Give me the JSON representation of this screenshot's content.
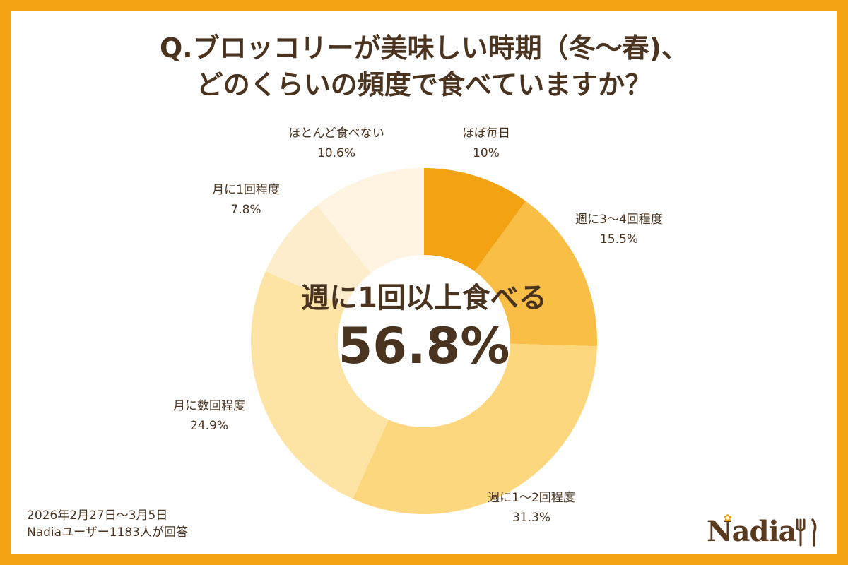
{
  "title": {
    "line1": "Q.ブロッコリーが美味しい時期（冬〜春)、",
    "line2": "どのくらいの頻度で食べていますか？"
  },
  "center": {
    "caption": "週に1回以上食べる",
    "value": "56.8%"
  },
  "footnote": {
    "period": "2026年2月27日〜3月5日",
    "respondents": "Nadiaユーザー1183人が回答"
  },
  "logo": {
    "text": "Nadia"
  },
  "colors": {
    "background": "#F3A312",
    "text": "#4A3420"
  },
  "chart_data": {
    "type": "pie",
    "variant": "donut",
    "title": "Q.ブロッコリーが美味しい時期（冬〜春)、どのくらいの頻度で食べていますか？",
    "unit": "%",
    "slices": [
      {
        "label": "ほぼ毎日",
        "value": 10,
        "display": "10%",
        "color": "#F3A312"
      },
      {
        "label": "週に3〜4回程度",
        "value": 15.5,
        "display": "15.5%",
        "color": "#F8BE45"
      },
      {
        "label": "週に1〜2回程度",
        "value": 31.3,
        "display": "31.3%",
        "color": "#FCD77D"
      },
      {
        "label": "月に数回程度",
        "value": 24.9,
        "display": "24.9%",
        "color": "#FDE3A4"
      },
      {
        "label": "月に1回程度",
        "value": 7.8,
        "display": "7.8%",
        "color": "#FDEDCC"
      },
      {
        "label": "ほとんど食べない",
        "value": 10.6,
        "display": "10.6%",
        "color": "#FEF4E1"
      }
    ]
  }
}
